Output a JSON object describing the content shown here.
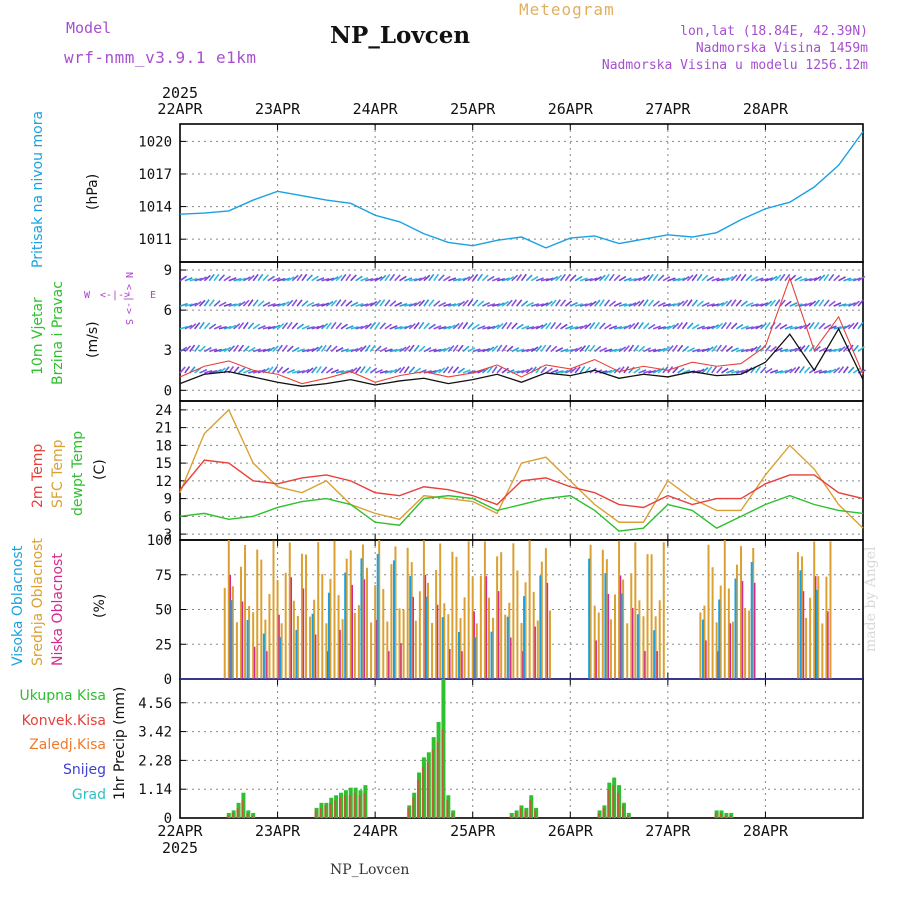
{
  "header": {
    "model_label": "Model",
    "model_name": "wrf-nmm_v3.9.1 e1km",
    "station": "NP_Lovcen",
    "product": "Meteogram",
    "coords": "lon,lat (18.84E, 42.39N)",
    "elevation": "Nadmorska Visina 1459m",
    "model_elevation": "Nadmorska Visina u modelu 1256.12m"
  },
  "footer": {
    "station": "NP_Lovcen",
    "credit": "made by Angel"
  },
  "time_axis": {
    "year": "2025",
    "labels": [
      "22APR",
      "23APR",
      "24APR",
      "25APR",
      "26APR",
      "27APR",
      "28APR"
    ]
  },
  "colors": {
    "pressure": "#1ba1e2",
    "dewpt": "#2ec02e",
    "temp2m": "#e8403a",
    "sfc": "#dba032",
    "high_cloud": "#1ba1e2",
    "mid_cloud": "#dba032",
    "low_cloud": "#d52a8c",
    "precip_total": "#2ec02e",
    "precip_conv": "#e8403a",
    "precip_frz": "#f07a2a",
    "snow": "#4040d0",
    "graupel": "#30c0c0",
    "wind_label": "#2ec02e",
    "wind_dir": "#b040d0",
    "header_purple": "#a64fd0",
    "header_gold": "#e0b060"
  },
  "chart_data": [
    {
      "type": "line",
      "ylabel": "Pritisak na nivou mora",
      "unit": "(hPa)",
      "yticks": [
        1011,
        1014,
        1017,
        1020
      ],
      "ylim": [
        1008.9,
        1021.6
      ],
      "x": [
        0,
        0.25,
        0.5,
        0.75,
        1,
        1.25,
        1.5,
        1.75,
        2,
        2.25,
        2.5,
        2.75,
        3,
        3.25,
        3.5,
        3.75,
        4,
        4.25,
        4.5,
        4.75,
        5,
        5.25,
        5.5,
        5.75,
        6,
        6.25,
        6.5,
        6.75,
        7
      ],
      "values": [
        1013.3,
        1013.4,
        1013.6,
        1014.6,
        1015.4,
        1015,
        1014.6,
        1014.3,
        1013.2,
        1012.6,
        1011.5,
        1010.7,
        1010.4,
        1010.9,
        1011.2,
        1010.2,
        1011.1,
        1011.3,
        1010.6,
        1011,
        1011.4,
        1011.2,
        1011.6,
        1012.8,
        1013.8,
        1014.4,
        1015.8,
        1017.8,
        1020.9
      ],
      "series": [
        {
          "name": "Pritisak na nivou mora"
        }
      ]
    },
    {
      "type": "line",
      "ylabel": [
        "10m Vjetar",
        "Brzina i Pravac"
      ],
      "unit": "(m/s)",
      "direction_labels": {
        "n": "N",
        "s": "S",
        "w": "W",
        "e": "E",
        "compass": "<-|->"
      },
      "yticks": [
        0,
        3,
        6,
        9
      ],
      "ylim": [
        -0.8,
        9.6
      ],
      "x": [
        0,
        0.25,
        0.5,
        0.75,
        1,
        1.25,
        1.5,
        1.75,
        2,
        2.25,
        2.5,
        2.75,
        3,
        3.25,
        3.5,
        3.75,
        4,
        4.25,
        4.5,
        4.75,
        5,
        5.25,
        5.5,
        5.75,
        6,
        6.25,
        6.5,
        6.75,
        7
      ],
      "series": [
        {
          "name": "speed",
          "values": [
            0.5,
            1.2,
            1.4,
            1.0,
            0.6,
            0.3,
            0.5,
            0.8,
            0.4,
            0.7,
            0.9,
            0.5,
            0.8,
            1.2,
            0.6,
            1.3,
            1.1,
            1.5,
            0.9,
            1.2,
            1.0,
            1.4,
            1.1,
            1.2,
            2.1,
            4.2,
            1.5,
            4.6,
            0.8
          ]
        },
        {
          "name": "gust",
          "values": [
            1.0,
            1.8,
            2.2,
            1.5,
            1.2,
            0.5,
            0.9,
            1.4,
            0.6,
            1.1,
            1.4,
            1.0,
            1.3,
            1.9,
            1.0,
            1.9,
            1.6,
            2.3,
            1.4,
            1.8,
            1.5,
            2.1,
            1.8,
            2.0,
            3.3,
            8.4,
            3.0,
            5.5,
            1.2
          ]
        }
      ]
    },
    {
      "type": "line",
      "ylabel": [
        "2m Temp",
        "SFC Temp",
        "dewpt Temp"
      ],
      "unit": "(C)",
      "yticks": [
        3,
        6,
        9,
        12,
        15,
        18,
        21,
        24
      ],
      "ylim": [
        2.0,
        25.5
      ],
      "x": [
        0,
        0.25,
        0.5,
        0.75,
        1,
        1.25,
        1.5,
        1.75,
        2,
        2.25,
        2.5,
        2.75,
        3,
        3.25,
        3.5,
        3.75,
        4,
        4.25,
        4.5,
        4.75,
        5,
        5.25,
        5.5,
        5.75,
        6,
        6.25,
        6.5,
        6.75,
        7
      ],
      "series": [
        {
          "name": "2m Temp",
          "values": [
            10.5,
            15.5,
            15,
            12,
            11.5,
            12.5,
            13,
            12,
            10,
            9.5,
            11,
            10.5,
            9.5,
            8,
            12,
            12.5,
            11,
            10,
            8,
            7.5,
            9.5,
            8,
            9,
            9,
            11.5,
            13,
            13,
            10,
            9
          ]
        },
        {
          "name": "SFC Temp",
          "values": [
            10,
            20,
            24,
            15,
            11,
            10,
            12,
            8,
            6.5,
            5.5,
            9.5,
            9,
            8.5,
            6.5,
            15,
            16,
            12,
            8,
            5,
            5,
            12,
            9,
            7,
            7,
            13,
            18,
            14,
            8,
            4
          ]
        },
        {
          "name": "dewpt Temp",
          "values": [
            6,
            6.5,
            5.5,
            6,
            7.5,
            8.5,
            9,
            8,
            5,
            4.5,
            9,
            9.5,
            9,
            7,
            8,
            9,
            9.5,
            7,
            3.5,
            4,
            8,
            7,
            4,
            6,
            8,
            9.5,
            8,
            7,
            6.5
          ]
        }
      ]
    },
    {
      "type": "bar",
      "ylabel": [
        "Visoka Oblacnost",
        "Srednja Oblacnost",
        "Niska Oblacnost"
      ],
      "unit": "(%)",
      "yticks": [
        0,
        25,
        50,
        75,
        100
      ],
      "ylim": [
        0,
        100
      ],
      "note": "hourly cloud cover bars, approximate",
      "series": [
        {
          "name": "Visoka Oblacnost"
        },
        {
          "name": "Srednja Oblacnost"
        },
        {
          "name": "Niska Oblacnost"
        }
      ]
    },
    {
      "type": "bar",
      "ylabel": "1hr Precip (mm)",
      "yticks": [
        "0",
        "1.14",
        "2.28",
        "3.42",
        "4.56"
      ],
      "ylim": [
        0,
        5.5
      ],
      "legend": [
        "Ukupna Kisa",
        "Konvek.Kisa",
        "Zaledj.Kisa",
        "Snijeg",
        "Grad"
      ],
      "x": [
        0.5,
        0.55,
        0.6,
        0.65,
        0.7,
        0.75,
        1.4,
        1.45,
        1.5,
        1.55,
        1.6,
        1.65,
        1.7,
        1.75,
        1.8,
        1.85,
        1.9,
        2.35,
        2.4,
        2.45,
        2.5,
        2.55,
        2.6,
        2.65,
        2.7,
        2.75,
        2.8,
        3.4,
        3.45,
        3.5,
        3.55,
        3.6,
        3.65,
        4.3,
        4.35,
        4.4,
        4.45,
        4.5,
        4.55,
        4.6,
        5.5,
        5.55,
        5.6,
        5.65
      ],
      "series": [
        {
          "name": "Ukupna Kisa",
          "values": [
            0.2,
            0.3,
            0.6,
            1.0,
            0.3,
            0.2,
            0.4,
            0.6,
            0.6,
            0.8,
            0.9,
            1.0,
            1.1,
            1.2,
            1.2,
            1.1,
            1.3,
            0.5,
            1.0,
            1.8,
            2.4,
            2.6,
            3.2,
            3.8,
            5.5,
            0.9,
            0.3,
            0.2,
            0.3,
            0.5,
            0.4,
            0.9,
            0.4,
            0.3,
            0.5,
            1.4,
            1.6,
            1.3,
            0.6,
            0.2,
            0.3,
            0.3,
            0.2,
            0.2
          ]
        },
        {
          "name": "Konvek.Kisa",
          "values": [
            0.1,
            0.2,
            0.4,
            0.7,
            0.2,
            0.1,
            0.3,
            0.4,
            0.5,
            0.6,
            0.7,
            0.8,
            0.9,
            0.9,
            1.0,
            0.9,
            1.0,
            0.4,
            0.8,
            1.5,
            2.0,
            2.2,
            2.7,
            3.0,
            3.5,
            0.7,
            0.2,
            0.1,
            0.2,
            0.4,
            0.3,
            0.7,
            0.3,
            0.2,
            0.4,
            1.1,
            1.3,
            1.0,
            0.5,
            0.1,
            0.2,
            0.2,
            0.1,
            0.1
          ]
        }
      ]
    }
  ]
}
